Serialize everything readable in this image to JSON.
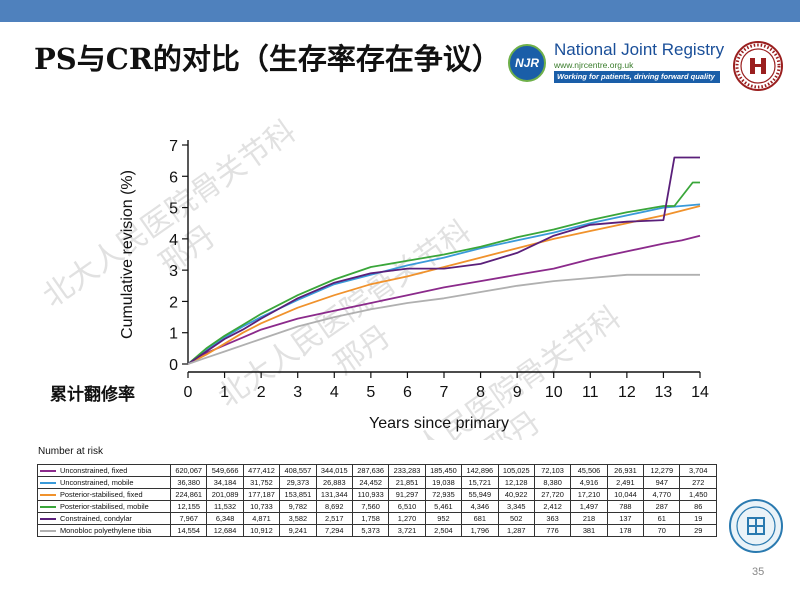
{
  "slide": {
    "title": "PS与CR的对比（生存率存在争议）",
    "side_label": "累计翻修率",
    "page_number": "35",
    "accent_color": "#4f81bd"
  },
  "logo": {
    "badge": "NJR",
    "name": "National Joint Registry",
    "url": "www.njrcentre.org.uk",
    "strapline": "Working for patients, driving forward quality",
    "icon": "njr-logo-icon"
  },
  "chart_data": {
    "type": "line",
    "title": "",
    "xlabel": "Years since primary",
    "ylabel": "Cumulative revision (%)",
    "xlim": [
      0,
      14
    ],
    "ylim": [
      0,
      7
    ],
    "x_ticks": [
      "0",
      "1",
      "2",
      "3",
      "4",
      "5",
      "6",
      "7",
      "8",
      "9",
      "10",
      "11",
      "12",
      "13",
      "14"
    ],
    "y_ticks": [
      "0",
      "1",
      "2",
      "3",
      "4",
      "5",
      "6",
      "7"
    ],
    "grid": false,
    "series": [
      {
        "name": "Unconstrained, fixed",
        "color": "#8b2a8b",
        "x": [
          0,
          0.5,
          1,
          1.5,
          2,
          3,
          4,
          5,
          6,
          7,
          8,
          9,
          10,
          11,
          12,
          13,
          13.5,
          14
        ],
        "y": [
          0,
          0.35,
          0.6,
          0.85,
          1.1,
          1.45,
          1.7,
          1.95,
          2.2,
          2.45,
          2.65,
          2.85,
          3.05,
          3.35,
          3.6,
          3.85,
          3.95,
          4.1
        ]
      },
      {
        "name": "Unconstrained, mobile",
        "color": "#3a9ad9",
        "x": [
          0,
          0.5,
          1,
          1.5,
          2,
          3,
          4,
          5,
          6,
          7,
          8,
          9,
          10,
          11,
          12,
          13,
          14
        ],
        "y": [
          0,
          0.45,
          0.85,
          1.2,
          1.5,
          2.05,
          2.55,
          2.85,
          3.15,
          3.4,
          3.7,
          3.95,
          4.2,
          4.5,
          4.75,
          5.0,
          5.1
        ]
      },
      {
        "name": "Posterior-stabilised, fixed",
        "color": "#f0922c",
        "x": [
          0,
          0.5,
          1,
          1.5,
          2,
          3,
          4,
          5,
          6,
          7,
          8,
          9,
          10,
          11,
          12,
          13,
          14
        ],
        "y": [
          0,
          0.3,
          0.65,
          1.0,
          1.3,
          1.8,
          2.2,
          2.55,
          2.8,
          3.1,
          3.4,
          3.7,
          4.0,
          4.25,
          4.5,
          4.75,
          5.05
        ]
      },
      {
        "name": "Posterior-stabilised, mobile",
        "color": "#3aa63a",
        "x": [
          0,
          0.5,
          1,
          1.5,
          2,
          3,
          4,
          5,
          6,
          7,
          8,
          9,
          10,
          11,
          12,
          13,
          13.3,
          13.8,
          14
        ],
        "y": [
          0,
          0.5,
          0.9,
          1.25,
          1.6,
          2.2,
          2.7,
          3.1,
          3.3,
          3.5,
          3.75,
          4.05,
          4.3,
          4.6,
          4.85,
          5.05,
          5.05,
          5.8,
          5.8
        ]
      },
      {
        "name": "Constrained, condylar",
        "color": "#5a1f7a",
        "x": [
          0,
          0.5,
          1,
          1.5,
          2,
          3,
          4,
          5,
          6,
          7,
          8,
          9,
          10,
          11,
          12,
          13,
          13.3,
          14
        ],
        "y": [
          0,
          0.4,
          0.8,
          1.1,
          1.45,
          2.1,
          2.6,
          2.9,
          3.05,
          3.05,
          3.2,
          3.55,
          4.1,
          4.45,
          4.55,
          4.6,
          6.6,
          6.6
        ]
      },
      {
        "name": "Monobloc polyethylene tibia",
        "color": "#b0b0b0",
        "x": [
          0,
          0.5,
          1,
          2,
          3,
          4,
          5,
          6,
          7,
          8,
          9,
          10,
          11,
          12,
          13,
          14
        ],
        "y": [
          0,
          0.2,
          0.4,
          0.8,
          1.2,
          1.5,
          1.75,
          1.95,
          2.1,
          2.3,
          2.5,
          2.65,
          2.75,
          2.85,
          2.85,
          2.85
        ]
      }
    ]
  },
  "risk_table": {
    "title": "Number at risk",
    "rows": [
      {
        "label": "Unconstrained, fixed",
        "color": "#8b2a8b",
        "values": [
          "620,067",
          "549,666",
          "477,412",
          "408,557",
          "344,015",
          "287,636",
          "233,283",
          "185,450",
          "142,896",
          "105,025",
          "72,103",
          "45,506",
          "26,931",
          "12,279",
          "3,704"
        ]
      },
      {
        "label": "Unconstrained, mobile",
        "color": "#3a9ad9",
        "values": [
          "36,380",
          "34,184",
          "31,752",
          "29,373",
          "26,883",
          "24,452",
          "21,851",
          "19,038",
          "15,721",
          "12,128",
          "8,380",
          "4,916",
          "2,491",
          "947",
          "272"
        ]
      },
      {
        "label": "Posterior-stabilised, fixed",
        "color": "#f0922c",
        "values": [
          "224,861",
          "201,089",
          "177,187",
          "153,851",
          "131,344",
          "110,933",
          "91,297",
          "72,935",
          "55,949",
          "40,922",
          "27,720",
          "17,210",
          "10,044",
          "4,770",
          "1,450"
        ]
      },
      {
        "label": "Posterior-stabilised, mobile",
        "color": "#3aa63a",
        "values": [
          "12,155",
          "11,532",
          "10,733",
          "9,782",
          "8,692",
          "7,560",
          "6,510",
          "5,461",
          "4,346",
          "3,345",
          "2,412",
          "1,497",
          "788",
          "287",
          "86"
        ]
      },
      {
        "label": "Constrained, condylar",
        "color": "#5a1f7a",
        "values": [
          "7,967",
          "6,348",
          "4,871",
          "3,582",
          "2,517",
          "1,758",
          "1,270",
          "952",
          "681",
          "502",
          "363",
          "218",
          "137",
          "61",
          "19"
        ]
      },
      {
        "label": "Monobloc polyethylene tibia",
        "color": "#b0b0b0",
        "values": [
          "14,554",
          "12,684",
          "10,912",
          "9,241",
          "7,294",
          "5,373",
          "3,721",
          "2,504",
          "1,796",
          "1,287",
          "776",
          "381",
          "178",
          "70",
          "29"
        ]
      }
    ]
  },
  "watermark": {
    "line1": "北大人民医院骨关节科",
    "line2": "邢丹"
  }
}
